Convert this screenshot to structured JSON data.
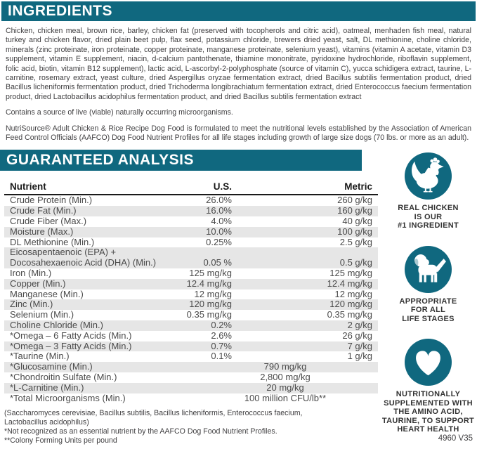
{
  "colors": {
    "teal": "#10687f",
    "row_alt": "#e6e6e6",
    "text": "#414042"
  },
  "ingredients": {
    "title": "INGREDIENTS",
    "body": "Chicken, chicken meal, brown rice, barley, chicken fat (preserved with tocopherols and citric acid), oatmeal, menhaden fish meal, natural turkey and chicken flavor, dried plain beet pulp, flax seed, potassium chloride, brewers dried yeast, salt, DL methionine, choline chloride, minerals (zinc proteinate, iron proteinate, copper proteinate, manganese proteinate, selenium yeast), vitamins (vitamin A acetate, vitamin D3 supplement, vitamin E supplement, niacin, d-calcium pantothenate, thiamine mononitrate, pyridoxine hydrochloride, riboflavin supplement, folic acid, biotin, vitamin B12 supplement), lactic acid, L-ascorbyl-2-polyphosphate (source of vitamin C), yucca schidigera extract, taurine, L-carnitine, rosemary extract, yeast culture, dried Aspergillus oryzae fermentation extract, dried Bacillus subtilis fermentation product, dried Bacillus licheniformis fermentation product, dried Trichoderma longibrachiatum fermentation extract, dried Enterococcus faecium fermentation product, dried Lactobacillus acidophilus fermentation product, and dried Bacillus subtilis fermentation extract",
    "contains": "Contains a source of live (viable) naturally occurring microorganisms.",
    "aafco": "NutriSource® Adult Chicken & Rice Recipe Dog Food is formulated to meet the nutritional levels established by the Association of American Feed Control Officials (AAFCO) Dog Food Nutrient Profiles for all life stages including growth of large size dogs (70 lbs. or more as an adult)."
  },
  "analysis": {
    "title": "GUARANTEED ANALYSIS",
    "columns": [
      "Nutrient",
      "U.S.",
      "Metric"
    ],
    "rows": [
      {
        "nutrient": "Crude Protein (Min.)",
        "us": "26.0%",
        "metric": "260 g/kg"
      },
      {
        "nutrient": "Crude Fat (Min.)",
        "us": "16.0%",
        "metric": "160 g/kg"
      },
      {
        "nutrient": "Crude Fiber (Max.)",
        "us": "4.0%",
        "metric": "40 g/kg"
      },
      {
        "nutrient": "Moisture (Max.)",
        "us": "10.0%",
        "metric": "100 g/kg"
      },
      {
        "nutrient": "DL Methionine (Min.)",
        "us": "0.25%",
        "metric": "2.5 g/kg"
      },
      {
        "nutrient": "Eicosapentaenoic (EPA) +\nDocosahexaenoic Acid (DHA) (Min.)",
        "us": "0.05 %",
        "metric": "0.5 g/kg"
      },
      {
        "nutrient": "Iron (Min.)",
        "us": "125 mg/kg",
        "metric": "125 mg/kg"
      },
      {
        "nutrient": "Copper (Min.)",
        "us": "12.4 mg/kg",
        "metric": "12.4 mg/kg"
      },
      {
        "nutrient": "Manganese (Min.)",
        "us": "12 mg/kg",
        "metric": "12 mg/kg"
      },
      {
        "nutrient": "Zinc (Min.)",
        "us": "120 mg/kg",
        "metric": "120 mg/kg"
      },
      {
        "nutrient": "Selenium (Min.)",
        "us": "0.35 mg/kg",
        "metric": "0.35 mg/kg"
      },
      {
        "nutrient": "Choline Chloride (Min.)",
        "us": "0.2%",
        "metric": "2 g/kg"
      },
      {
        "nutrient": "*Omega – 6 Fatty Acids (Min.)",
        "us": "2.6%",
        "metric": "26 g/kg"
      },
      {
        "nutrient": "*Omega – 3 Fatty Acids (Min.)",
        "us": "0.7%",
        "metric": "7 g/kg"
      },
      {
        "nutrient": "*Taurine (Min.)",
        "us": "0.1%",
        "metric": "1 g/kg"
      },
      {
        "nutrient": "*Glucosamine (Min.)",
        "us": "790 mg/kg",
        "metric": "",
        "merged": true
      },
      {
        "nutrient": "*Chondroitin Sulfate (Min.)",
        "us": "2,800 mg/kg",
        "metric": "",
        "merged": true
      },
      {
        "nutrient": "*L-Carnitine (Min.)",
        "us": "20 mg/kg",
        "metric": "",
        "merged": true
      },
      {
        "nutrient": "*Total Microorganisms (Min.)",
        "us": "100 million CFU/lb**",
        "metric": "",
        "merged": true
      }
    ],
    "footnotes": [
      "(Saccharomyces cerevisiae, Bacillus subtilis, Bacillus licheniformis, Enterococcus faecium, Lactobacillus acidophilus)",
      "*Not recognized as an essential nutrient by the AAFCO Dog Food Nutrient Profiles.",
      "**Colony Forming Units per pound"
    ]
  },
  "badges": [
    {
      "icon": "chicken-icon",
      "label": "REAL CHICKEN\nIS OUR\n#1 INGREDIENT"
    },
    {
      "icon": "dog-icon",
      "label": "APPROPRIATE\nFOR ALL\nLIFE STAGES"
    },
    {
      "icon": "heart-icon",
      "label": "NUTRITIONALLY\nSUPPLEMENTED WITH\nTHE AMINO ACID,\nTAURINE, TO SUPPORT\nHEART HEALTH"
    }
  ],
  "footer": {
    "code": "4960 V35"
  }
}
